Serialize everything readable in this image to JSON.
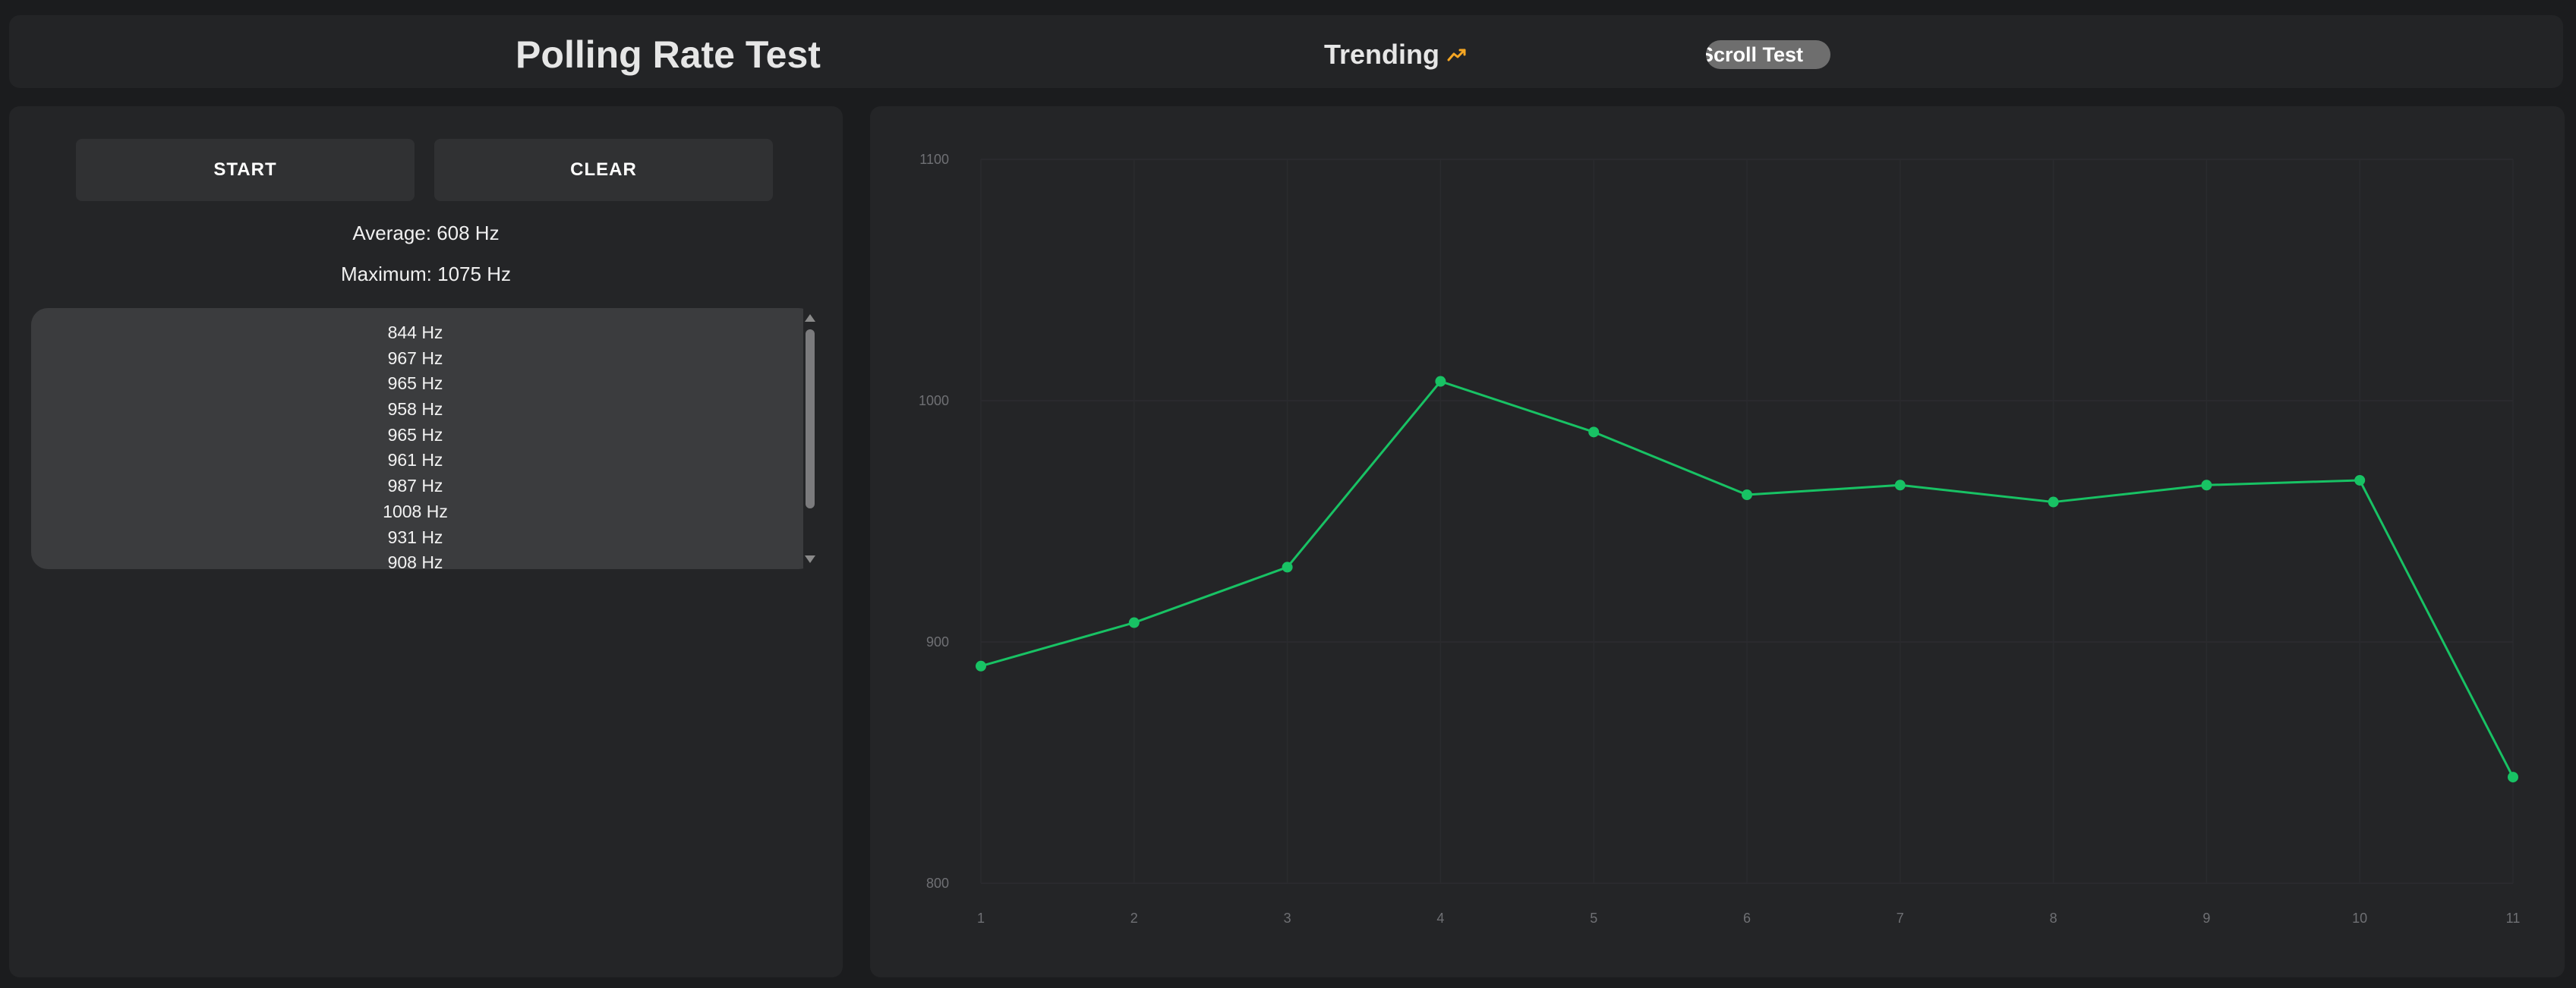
{
  "header": {
    "title": "Polling Rate Test",
    "trending_label": "Trending",
    "trending_icon": "trending-up-icon",
    "scroll_test_label": "Scroll Test"
  },
  "controls": {
    "start_label": "START",
    "clear_label": "CLEAR"
  },
  "stats": {
    "average": "Average: 608 Hz",
    "maximum": "Maximum: 1075 Hz"
  },
  "readings": [
    "844 Hz",
    "967 Hz",
    "965 Hz",
    "958 Hz",
    "965 Hz",
    "961 Hz",
    "987 Hz",
    "1008 Hz",
    "931 Hz",
    "908 Hz"
  ],
  "colors": {
    "line": "#18c264",
    "accent_trending": "#f5a623"
  },
  "chart_data": {
    "type": "line",
    "x": [
      1,
      2,
      3,
      4,
      5,
      6,
      7,
      8,
      9,
      10,
      11
    ],
    "values": [
      890,
      908,
      931,
      1008,
      987,
      961,
      965,
      958,
      965,
      967,
      844
    ],
    "ylim": [
      800,
      1100
    ],
    "yticks": [
      800,
      900,
      1000,
      1100
    ],
    "grid": true
  }
}
